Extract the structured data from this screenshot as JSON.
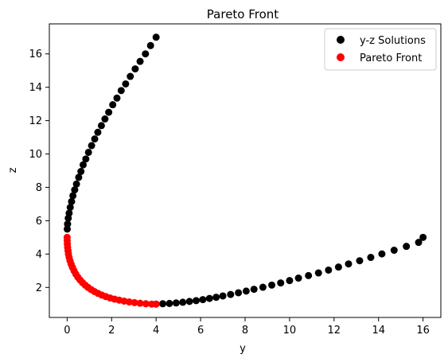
{
  "chart_data": {
    "type": "scatter",
    "title": "Pareto Front",
    "xlabel": "y",
    "ylabel": "z",
    "xlim": [
      -0.8,
      16.8
    ],
    "ylim": [
      0.2,
      17.8
    ],
    "xticks": [
      0,
      2,
      4,
      6,
      8,
      10,
      12,
      14,
      16
    ],
    "yticks": [
      2,
      4,
      6,
      8,
      10,
      12,
      14,
      16
    ],
    "grid": false,
    "legend_position": "upper-right",
    "series": [
      {
        "name": "y-z Solutions",
        "color": "#000000",
        "points": [
          [
            4.0,
            17.0
          ],
          [
            3.75,
            16.5
          ],
          [
            3.52,
            16.0
          ],
          [
            3.28,
            15.55
          ],
          [
            3.06,
            15.1
          ],
          [
            2.84,
            14.65
          ],
          [
            2.63,
            14.2
          ],
          [
            2.43,
            13.8
          ],
          [
            2.24,
            13.35
          ],
          [
            2.05,
            12.95
          ],
          [
            1.87,
            12.5
          ],
          [
            1.7,
            12.1
          ],
          [
            1.54,
            11.7
          ],
          [
            1.38,
            11.3
          ],
          [
            1.24,
            10.9
          ],
          [
            1.1,
            10.5
          ],
          [
            0.96,
            10.1
          ],
          [
            0.84,
            9.7
          ],
          [
            0.72,
            9.35
          ],
          [
            0.62,
            8.95
          ],
          [
            0.52,
            8.6
          ],
          [
            0.42,
            8.2
          ],
          [
            0.34,
            7.85
          ],
          [
            0.26,
            7.5
          ],
          [
            0.2,
            7.15
          ],
          [
            0.14,
            6.8
          ],
          [
            0.09,
            6.45
          ],
          [
            0.05,
            6.15
          ],
          [
            0.02,
            5.8
          ],
          [
            0.005,
            5.5
          ],
          [
            4.0,
            1.0
          ],
          [
            4.3,
            1.02
          ],
          [
            4.6,
            1.04
          ],
          [
            4.9,
            1.07
          ],
          [
            5.2,
            1.11
          ],
          [
            5.5,
            1.16
          ],
          [
            5.8,
            1.21
          ],
          [
            6.1,
            1.27
          ],
          [
            6.4,
            1.34
          ],
          [
            6.7,
            1.41
          ],
          [
            7.0,
            1.49
          ],
          [
            7.35,
            1.58
          ],
          [
            7.7,
            1.68
          ],
          [
            8.05,
            1.78
          ],
          [
            8.4,
            1.89
          ],
          [
            8.8,
            2.01
          ],
          [
            9.2,
            2.14
          ],
          [
            9.6,
            2.27
          ],
          [
            10.0,
            2.41
          ],
          [
            10.4,
            2.56
          ],
          [
            10.85,
            2.71
          ],
          [
            11.3,
            2.87
          ],
          [
            11.75,
            3.04
          ],
          [
            12.2,
            3.22
          ],
          [
            12.65,
            3.41
          ],
          [
            13.15,
            3.6
          ],
          [
            13.65,
            3.8
          ],
          [
            14.15,
            4.01
          ],
          [
            14.7,
            4.23
          ],
          [
            15.25,
            4.46
          ],
          [
            15.8,
            4.7
          ],
          [
            16.0,
            5.0
          ]
        ]
      },
      {
        "name": "Pareto Front",
        "color": "#ff0000",
        "points": [
          [
            0.0,
            5.0
          ],
          [
            0.002,
            4.8
          ],
          [
            0.01,
            4.6
          ],
          [
            0.02,
            4.4
          ],
          [
            0.04,
            4.2
          ],
          [
            0.06,
            4.0
          ],
          [
            0.09,
            3.8
          ],
          [
            0.13,
            3.6
          ],
          [
            0.18,
            3.4
          ],
          [
            0.24,
            3.2
          ],
          [
            0.31,
            3.0
          ],
          [
            0.39,
            2.8
          ],
          [
            0.48,
            2.62
          ],
          [
            0.58,
            2.45
          ],
          [
            0.69,
            2.29
          ],
          [
            0.81,
            2.14
          ],
          [
            0.94,
            2.0
          ],
          [
            1.08,
            1.87
          ],
          [
            1.23,
            1.75
          ],
          [
            1.39,
            1.64
          ],
          [
            1.56,
            1.54
          ],
          [
            1.74,
            1.45
          ],
          [
            1.93,
            1.37
          ],
          [
            2.13,
            1.3
          ],
          [
            2.34,
            1.24
          ],
          [
            2.56,
            1.18
          ],
          [
            2.79,
            1.13
          ],
          [
            3.03,
            1.09
          ],
          [
            3.28,
            1.05
          ],
          [
            3.54,
            1.02
          ],
          [
            3.8,
            1.0
          ],
          [
            4.0,
            1.0
          ]
        ]
      }
    ]
  }
}
